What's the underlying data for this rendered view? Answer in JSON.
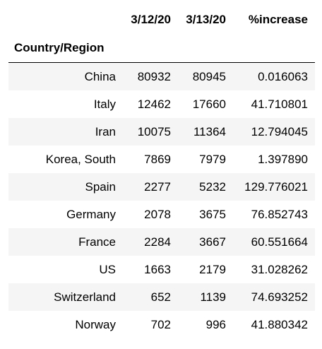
{
  "table": {
    "columns": [
      "3/12/20",
      "3/13/20",
      "%increase"
    ],
    "index_name": "Country/Region",
    "rows": [
      {
        "country": "China",
        "d1": "80932",
        "d2": "80945",
        "pct": "0.016063"
      },
      {
        "country": "Italy",
        "d1": "12462",
        "d2": "17660",
        "pct": "41.710801"
      },
      {
        "country": "Iran",
        "d1": "10075",
        "d2": "11364",
        "pct": "12.794045"
      },
      {
        "country": "Korea, South",
        "d1": "7869",
        "d2": "7979",
        "pct": "1.397890"
      },
      {
        "country": "Spain",
        "d1": "2277",
        "d2": "5232",
        "pct": "129.776021"
      },
      {
        "country": "Germany",
        "d1": "2078",
        "d2": "3675",
        "pct": "76.852743"
      },
      {
        "country": "France",
        "d1": "2284",
        "d2": "3667",
        "pct": "60.551664"
      },
      {
        "country": "US",
        "d1": "1663",
        "d2": "2179",
        "pct": "31.028262"
      },
      {
        "country": "Switzerland",
        "d1": "652",
        "d2": "1139",
        "pct": "74.693252"
      },
      {
        "country": "Norway",
        "d1": "702",
        "d2": "996",
        "pct": "41.880342"
      }
    ]
  },
  "colors": {
    "stripe": "#f5f5f5",
    "header_rule": "#000000"
  }
}
